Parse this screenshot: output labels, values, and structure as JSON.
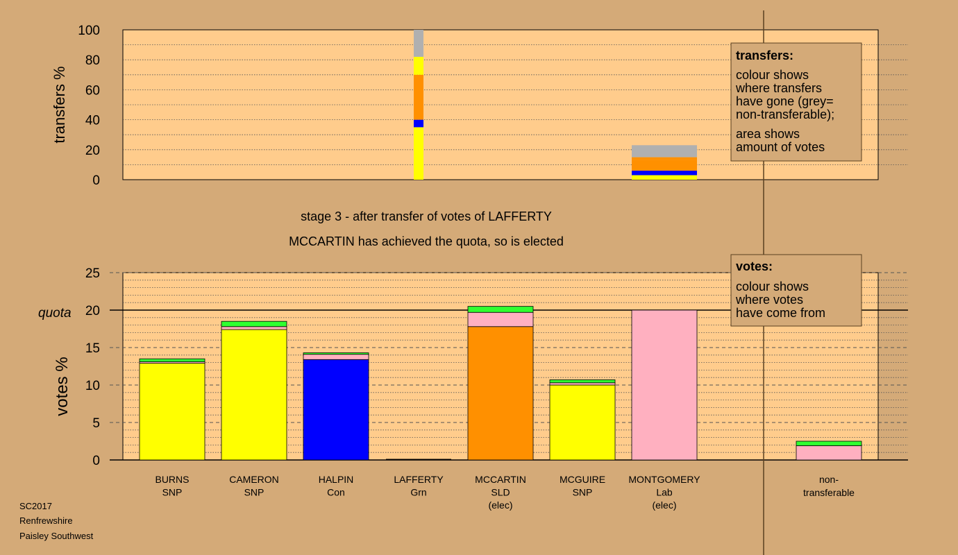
{
  "colors": {
    "page_bg": "#d4aa78",
    "plot_bg": "#ffcc8c",
    "SNP": "#ffff00",
    "Con": "#0000ff",
    "SLD": "#ff9000",
    "Lab": "#ffb0c0",
    "Grn": "#30ff30",
    "non_transferable": "#b0b0b0"
  },
  "caption": {
    "line1": "stage 3 - after transfer of votes of LAFFERTY",
    "line2": "MCCARTIN has achieved the quota, so is elected"
  },
  "footer": [
    "SC2017",
    "Renfrewshire",
    "Paisley Southwest"
  ],
  "transfers_legend": {
    "title": "transfers:",
    "lines": [
      "colour shows",
      "where transfers",
      "have gone (grey=",
      "non-transferable);",
      "area shows",
      "amount of votes"
    ]
  },
  "votes_legend": {
    "title": "votes:",
    "lines": [
      "colour shows",
      "where votes",
      "have come from"
    ]
  },
  "chart_data": [
    {
      "type": "bar",
      "name": "transfers",
      "ylabel": "transfers %",
      "ylim": [
        0,
        100
      ],
      "yticks": [
        0,
        20,
        40,
        60,
        80,
        100
      ],
      "grid": true,
      "bars": [
        {
          "position": "LAFFERTY",
          "segments": [
            {
              "to": "SNP",
              "value": 35
            },
            {
              "to": "Con",
              "value": 5
            },
            {
              "to": "SLD",
              "value": 30
            },
            {
              "to": "SNP",
              "value": 12
            },
            {
              "to": "non_transferable",
              "value": 18
            }
          ]
        },
        {
          "position": "MONTGOMERY",
          "segments": [
            {
              "to": "SNP",
              "value": 3
            },
            {
              "to": "Con",
              "value": 3
            },
            {
              "to": "SLD",
              "value": 7
            },
            {
              "to": "SLD",
              "value": 2
            },
            {
              "to": "non_transferable",
              "value": 8
            }
          ]
        }
      ]
    },
    {
      "type": "bar",
      "name": "votes",
      "ylabel": "votes %",
      "ylim": [
        0,
        25
      ],
      "yticks": [
        0,
        5,
        10,
        15,
        20,
        25
      ],
      "quota": 20,
      "quota_label": "quota",
      "grid": true,
      "categories": [
        {
          "name": "BURNS",
          "party": "SNP",
          "note": "",
          "segments": [
            {
              "from": "SNP",
              "value": 12.9
            },
            {
              "from": "Lab",
              "value": 0.2
            },
            {
              "from": "Grn",
              "value": 0.4
            }
          ]
        },
        {
          "name": "CAMERON",
          "party": "SNP",
          "note": "",
          "segments": [
            {
              "from": "SNP",
              "value": 17.4
            },
            {
              "from": "Lab",
              "value": 0.4
            },
            {
              "from": "Grn",
              "value": 0.7
            }
          ]
        },
        {
          "name": "HALPIN",
          "party": "Con",
          "note": "",
          "segments": [
            {
              "from": "Con",
              "value": 13.4
            },
            {
              "from": "Lab",
              "value": 0.7
            },
            {
              "from": "Grn",
              "value": 0.2
            }
          ]
        },
        {
          "name": "LAFFERTY",
          "party": "Grn",
          "note": "",
          "segments": []
        },
        {
          "name": "MCCARTIN",
          "party": "SLD",
          "note": "(elec)",
          "segments": [
            {
              "from": "SLD",
              "value": 17.8
            },
            {
              "from": "Lab",
              "value": 1.9
            },
            {
              "from": "Grn",
              "value": 0.8
            }
          ]
        },
        {
          "name": "MCGUIRE",
          "party": "SNP",
          "note": "",
          "segments": [
            {
              "from": "SNP",
              "value": 10.0
            },
            {
              "from": "Lab",
              "value": 0.3
            },
            {
              "from": "Grn",
              "value": 0.4
            }
          ]
        },
        {
          "name": "MONTGOMERY",
          "party": "Lab",
          "note": "(elec)",
          "segments": [
            {
              "from": "Lab",
              "value": 20.0
            }
          ]
        }
      ],
      "non_transferable": {
        "label_lines": [
          "non-",
          "transferable"
        ],
        "segments": [
          {
            "from": "Lab",
            "value": 1.9
          },
          {
            "from": "Grn",
            "value": 0.6
          }
        ]
      }
    }
  ]
}
